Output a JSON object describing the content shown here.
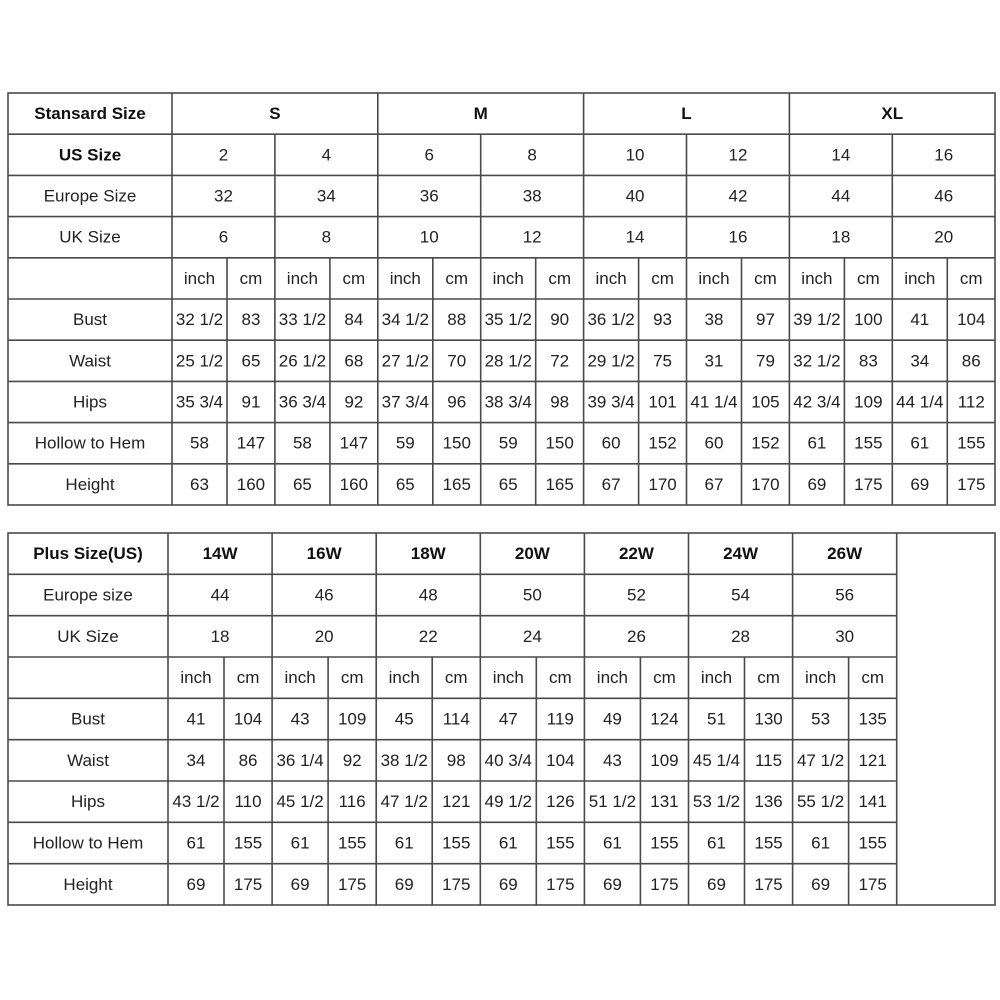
{
  "standard": {
    "rows": [
      {
        "label": "Stansard Size",
        "cells": [
          "S",
          "M",
          "L",
          "XL"
        ]
      },
      {
        "label": "US Size",
        "cells": [
          "2",
          "4",
          "6",
          "8",
          "10",
          "12",
          "14",
          "16"
        ]
      },
      {
        "label": "Europe Size",
        "cells": [
          "32",
          "34",
          "36",
          "38",
          "40",
          "42",
          "44",
          "46"
        ]
      },
      {
        "label": "UK Size",
        "cells": [
          "6",
          "8",
          "10",
          "12",
          "14",
          "16",
          "18",
          "20"
        ]
      },
      {
        "cells": [
          "inch",
          "cm",
          "inch",
          "cm",
          "inch",
          "cm",
          "inch",
          "cm",
          "inch",
          "cm",
          "inch",
          "cm",
          "inch",
          "cm",
          "inch",
          "cm"
        ]
      },
      {
        "label": "Bust",
        "cells": [
          "32 1/2",
          "83",
          "33 1/2",
          "84",
          "34 1/2",
          "88",
          "35 1/2",
          "90",
          "36 1/2",
          "93",
          "38",
          "97",
          "39 1/2",
          "100",
          "41",
          "104"
        ]
      },
      {
        "label": "Waist",
        "cells": [
          "25 1/2",
          "65",
          "26 1/2",
          "68",
          "27 1/2",
          "70",
          "28 1/2",
          "72",
          "29 1/2",
          "75",
          "31",
          "79",
          "32 1/2",
          "83",
          "34",
          "86"
        ]
      },
      {
        "label": "Hips",
        "cells": [
          "35 3/4",
          "91",
          "36 3/4",
          "92",
          "37 3/4",
          "96",
          "38 3/4",
          "98",
          "39 3/4",
          "101",
          "41 1/4",
          "105",
          "42 3/4",
          "109",
          "44 1/4",
          "112"
        ]
      },
      {
        "label": "Hollow to Hem",
        "cells": [
          "58",
          "147",
          "58",
          "147",
          "59",
          "150",
          "59",
          "150",
          "60",
          "152",
          "60",
          "152",
          "61",
          "155",
          "61",
          "155"
        ]
      },
      {
        "label": "Height",
        "cells": [
          "63",
          "160",
          "65",
          "160",
          "65",
          "165",
          "65",
          "165",
          "67",
          "170",
          "67",
          "170",
          "69",
          "175",
          "69",
          "175"
        ]
      }
    ]
  },
  "plus": {
    "rows": [
      {
        "label": "Plus Size(US)",
        "cells": [
          "14W",
          "16W",
          "18W",
          "20W",
          "22W",
          "24W",
          "26W"
        ]
      },
      {
        "label": "Europe size",
        "cells": [
          "44",
          "46",
          "48",
          "50",
          "52",
          "54",
          "56"
        ]
      },
      {
        "label": "UK Size",
        "cells": [
          "18",
          "20",
          "22",
          "24",
          "26",
          "28",
          "30"
        ]
      },
      {
        "cells": [
          "inch",
          "cm",
          "inch",
          "cm",
          "inch",
          "cm",
          "inch",
          "cm",
          "inch",
          "cm",
          "inch",
          "cm",
          "inch",
          "cm"
        ]
      },
      {
        "label": "Bust",
        "cells": [
          "41",
          "104",
          "43",
          "109",
          "45",
          "114",
          "47",
          "119",
          "49",
          "124",
          "51",
          "130",
          "53",
          "135"
        ]
      },
      {
        "label": "Waist",
        "cells": [
          "34",
          "86",
          "36 1/4",
          "92",
          "38 1/2",
          "98",
          "40 3/4",
          "104",
          "43",
          "109",
          "45 1/4",
          "115",
          "47 1/2",
          "121"
        ]
      },
      {
        "label": "Hips",
        "cells": [
          "43 1/2",
          "110",
          "45 1/2",
          "116",
          "47 1/2",
          "121",
          "49 1/2",
          "126",
          "51 1/2",
          "131",
          "53 1/2",
          "136",
          "55 1/2",
          "141"
        ]
      },
      {
        "label": "Hollow to Hem",
        "cells": [
          "61",
          "155",
          "61",
          "155",
          "61",
          "155",
          "61",
          "155",
          "61",
          "155",
          "61",
          "155",
          "61",
          "155"
        ]
      },
      {
        "label": "Height",
        "cells": [
          "69",
          "175",
          "69",
          "175",
          "69",
          "175",
          "69",
          "175",
          "69",
          "175",
          "69",
          "175",
          "69",
          "175"
        ]
      }
    ]
  }
}
